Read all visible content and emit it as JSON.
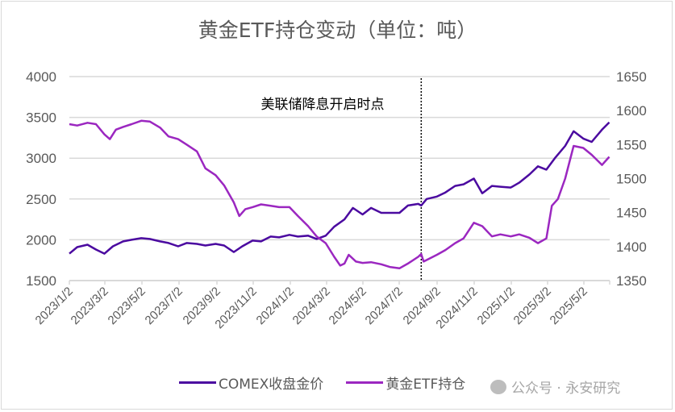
{
  "chart_data": {
    "type": "line",
    "title": "黄金ETF持仓变动（单位：吨）",
    "y_left": {
      "ticks": [
        1500,
        2000,
        2500,
        3000,
        3500,
        4000
      ],
      "range": [
        1500,
        4000
      ]
    },
    "y_right": {
      "ticks": [
        1350,
        1400,
        1450,
        1500,
        1550,
        1600,
        1650
      ],
      "range": [
        1350,
        1650
      ]
    },
    "x_ticks": [
      "2023/1/2",
      "2023/3/2",
      "2023/5/2",
      "2023/7/2",
      "2023/9/2",
      "2023/11/2",
      "2024/1/2",
      "2024/3/2",
      "2024/5/2",
      "2024/7/2",
      "2024/9/2",
      "2024/11/2",
      "2025/1/2",
      "2025/3/2",
      "2025/5/2"
    ],
    "grid": "horizontal",
    "legend_position": "bottom",
    "annotation": {
      "text": "美联储降息开启时点",
      "date": "2024-08-06",
      "style": "dotted vertical line"
    },
    "series": [
      {
        "name": "COMEX收盘金价",
        "axis": "left",
        "color": "#4b0aa0",
        "dates": [
          "2023-01-02",
          "2023-01-15",
          "2023-02-01",
          "2023-02-15",
          "2023-03-01",
          "2023-03-15",
          "2023-04-01",
          "2023-04-15",
          "2023-05-01",
          "2023-05-15",
          "2023-06-01",
          "2023-06-15",
          "2023-07-01",
          "2023-07-15",
          "2023-08-01",
          "2023-08-15",
          "2023-09-01",
          "2023-09-15",
          "2023-10-01",
          "2023-10-15",
          "2023-11-01",
          "2023-11-15",
          "2023-12-01",
          "2023-12-15",
          "2024-01-01",
          "2024-01-15",
          "2024-02-01",
          "2024-02-15",
          "2024-03-01",
          "2024-03-15",
          "2024-04-01",
          "2024-04-15",
          "2024-05-01",
          "2024-05-15",
          "2024-06-01",
          "2024-06-15",
          "2024-07-01",
          "2024-07-15",
          "2024-08-01",
          "2024-08-06",
          "2024-08-15",
          "2024-09-01",
          "2024-09-15",
          "2024-10-01",
          "2024-10-15",
          "2024-11-01",
          "2024-11-15",
          "2024-12-01",
          "2024-12-15",
          "2025-01-01",
          "2025-01-15",
          "2025-02-01",
          "2025-02-15",
          "2025-03-01",
          "2025-03-15",
          "2025-04-01",
          "2025-04-15",
          "2025-05-01",
          "2025-05-15",
          "2025-06-01",
          "2025-06-13"
        ],
        "values": [
          1830,
          1910,
          1940,
          1880,
          1830,
          1920,
          1980,
          2000,
          2020,
          2010,
          1980,
          1960,
          1920,
          1960,
          1950,
          1930,
          1950,
          1930,
          1850,
          1920,
          1990,
          1980,
          2040,
          2030,
          2060,
          2040,
          2050,
          2010,
          2050,
          2160,
          2250,
          2390,
          2310,
          2390,
          2330,
          2330,
          2330,
          2420,
          2440,
          2420,
          2500,
          2530,
          2580,
          2660,
          2680,
          2750,
          2570,
          2660,
          2650,
          2640,
          2700,
          2800,
          2900,
          2860,
          3000,
          3150,
          3330,
          3240,
          3200,
          3350,
          3440
        ]
      },
      {
        "name": "黄金ETF持仓",
        "axis": "right",
        "color": "#9b27c0",
        "dates": [
          "2023-01-02",
          "2023-01-15",
          "2023-02-01",
          "2023-02-15",
          "2023-03-01",
          "2023-03-10",
          "2023-03-20",
          "2023-04-01",
          "2023-04-15",
          "2023-05-01",
          "2023-05-15",
          "2023-06-01",
          "2023-06-15",
          "2023-07-01",
          "2023-07-15",
          "2023-08-01",
          "2023-08-15",
          "2023-09-01",
          "2023-09-15",
          "2023-10-01",
          "2023-10-10",
          "2023-10-20",
          "2023-11-01",
          "2023-11-15",
          "2023-12-01",
          "2023-12-15",
          "2024-01-01",
          "2024-01-15",
          "2024-02-01",
          "2024-02-15",
          "2024-03-01",
          "2024-03-15",
          "2024-03-25",
          "2024-04-01",
          "2024-04-08",
          "2024-04-20",
          "2024-05-01",
          "2024-05-15",
          "2024-06-01",
          "2024-06-15",
          "2024-07-01",
          "2024-07-15",
          "2024-08-01",
          "2024-08-06",
          "2024-08-10",
          "2024-09-01",
          "2024-09-15",
          "2024-10-01",
          "2024-10-15",
          "2024-11-01",
          "2024-11-15",
          "2024-12-01",
          "2024-12-15",
          "2025-01-01",
          "2025-01-15",
          "2025-02-01",
          "2025-02-15",
          "2025-03-01",
          "2025-03-10",
          "2025-03-20",
          "2025-04-01",
          "2025-04-15",
          "2025-05-01",
          "2025-05-15",
          "2025-06-01",
          "2025-06-13"
        ],
        "values": [
          1580,
          1578,
          1582,
          1580,
          1565,
          1558,
          1572,
          1576,
          1580,
          1585,
          1584,
          1575,
          1562,
          1558,
          1550,
          1540,
          1515,
          1505,
          1490,
          1465,
          1445,
          1455,
          1458,
          1462,
          1460,
          1458,
          1458,
          1445,
          1430,
          1415,
          1405,
          1385,
          1372,
          1375,
          1388,
          1378,
          1376,
          1377,
          1374,
          1370,
          1368,
          1375,
          1385,
          1389,
          1378,
          1388,
          1395,
          1405,
          1412,
          1435,
          1430,
          1415,
          1418,
          1415,
          1418,
          1413,
          1405,
          1412,
          1460,
          1470,
          1500,
          1548,
          1545,
          1535,
          1520,
          1532
        ]
      }
    ]
  },
  "watermark": "公众号 · 永安研究"
}
